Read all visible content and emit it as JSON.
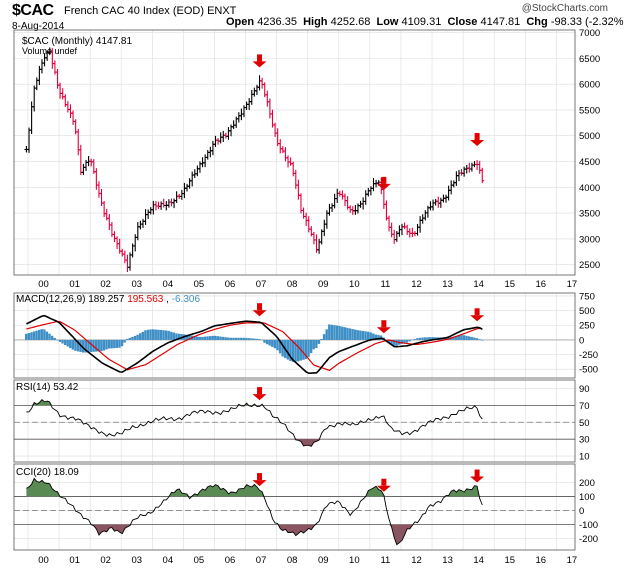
{
  "header": {
    "symbol": "$CAC",
    "name": "French CAC 40 Index (EOD)",
    "exchange": "ENXT",
    "date": "8-Aug-2014",
    "open_label": "Open",
    "open": "4236.35",
    "high_label": "High",
    "high": "4252.68",
    "low_label": "Low",
    "low": "4109.31",
    "close_label": "Close",
    "close": "4147.81",
    "chg_label": "Chg",
    "chg": "-98.33 (-2.32%)",
    "logo": "@StockCharts.com"
  },
  "chart_data": [
    {
      "type": "ohlc",
      "legend": "$CAC (Monthly) 4147.81",
      "legend2": "Volume undef",
      "x_tick_labels": [
        "00",
        "01",
        "02",
        "03",
        "04",
        "05",
        "06",
        "07",
        "08",
        "09",
        "10",
        "11",
        "12",
        "13",
        "14",
        "15",
        "16",
        "17"
      ],
      "y_ticks": [
        2500,
        3000,
        3500,
        4000,
        4500,
        5000,
        5500,
        6000,
        6500,
        7000
      ],
      "ylim": [
        2300,
        7050
      ],
      "pivots": [
        [
          1999.9,
          4500
        ],
        [
          2000.2,
          5900
        ],
        [
          2000.5,
          6500
        ],
        [
          2000.7,
          6650
        ],
        [
          2001.0,
          5900
        ],
        [
          2001.5,
          5200
        ],
        [
          2001.7,
          4300
        ],
        [
          2002.0,
          4600
        ],
        [
          2002.4,
          3600
        ],
        [
          2002.75,
          3000
        ],
        [
          2003.2,
          2500
        ],
        [
          2003.5,
          3200
        ],
        [
          2004.0,
          3600
        ],
        [
          2004.5,
          3700
        ],
        [
          2005.0,
          3900
        ],
        [
          2005.5,
          4400
        ],
        [
          2006.0,
          4900
        ],
        [
          2006.4,
          5000
        ],
        [
          2006.7,
          5300
        ],
        [
          2007.0,
          5600
        ],
        [
          2007.4,
          6000
        ],
        [
          2007.5,
          6050
        ],
        [
          2007.7,
          5600
        ],
        [
          2008.0,
          4900
        ],
        [
          2008.5,
          4400
        ],
        [
          2008.8,
          3500
        ],
        [
          2009.1,
          3100
        ],
        [
          2009.3,
          2800
        ],
        [
          2009.6,
          3500
        ],
        [
          2010.0,
          3900
        ],
        [
          2010.4,
          3500
        ],
        [
          2010.7,
          3700
        ],
        [
          2011.0,
          4000
        ],
        [
          2011.3,
          4100
        ],
        [
          2011.6,
          3200
        ],
        [
          2011.8,
          3000
        ],
        [
          2012.0,
          3300
        ],
        [
          2012.4,
          3050
        ],
        [
          2012.7,
          3400
        ],
        [
          2013.0,
          3700
        ],
        [
          2013.4,
          3800
        ],
        [
          2013.8,
          4200
        ],
        [
          2014.0,
          4300
        ],
        [
          2014.45,
          4500
        ],
        [
          2014.55,
          4300
        ],
        [
          2014.6,
          4150
        ]
      ],
      "arrows_x": [
        2007.45,
        2011.45,
        2014.45
      ]
    },
    {
      "type": "line",
      "legend": "MACD(12,26,9)",
      "macd": "189.257",
      "signal": "195.563",
      "hist": "-6.306",
      "y_ticks": [
        -500,
        -250,
        0,
        250,
        500,
        750
      ],
      "ylim": [
        -650,
        800
      ],
      "macd_pivots": [
        [
          1999.9,
          260
        ],
        [
          2000.5,
          420
        ],
        [
          2001.0,
          300
        ],
        [
          2001.8,
          -150
        ],
        [
          2002.4,
          -400
        ],
        [
          2003.0,
          -560
        ],
        [
          2003.5,
          -400
        ],
        [
          2004.0,
          -200
        ],
        [
          2004.5,
          -50
        ],
        [
          2005.0,
          50
        ],
        [
          2005.6,
          150
        ],
        [
          2006.0,
          240
        ],
        [
          2006.5,
          280
        ],
        [
          2007.0,
          320
        ],
        [
          2007.5,
          300
        ],
        [
          2008.0,
          60
        ],
        [
          2008.5,
          -330
        ],
        [
          2009.0,
          -570
        ],
        [
          2009.3,
          -560
        ],
        [
          2009.7,
          -300
        ],
        [
          2010.0,
          -200
        ],
        [
          2010.5,
          -100
        ],
        [
          2011.0,
          0
        ],
        [
          2011.4,
          30
        ],
        [
          2011.8,
          -120
        ],
        [
          2012.2,
          -100
        ],
        [
          2012.7,
          -30
        ],
        [
          2013.0,
          0
        ],
        [
          2013.5,
          40
        ],
        [
          2014.0,
          170
        ],
        [
          2014.5,
          220
        ],
        [
          2014.6,
          180
        ]
      ],
      "signal_pivots": [
        [
          1999.9,
          180
        ],
        [
          2000.5,
          260
        ],
        [
          2001.0,
          320
        ],
        [
          2001.5,
          170
        ],
        [
          2002.0,
          -60
        ],
        [
          2002.6,
          -330
        ],
        [
          2003.2,
          -510
        ],
        [
          2003.8,
          -420
        ],
        [
          2004.3,
          -250
        ],
        [
          2004.8,
          -80
        ],
        [
          2005.5,
          90
        ],
        [
          2006.0,
          180
        ],
        [
          2006.5,
          250
        ],
        [
          2007.0,
          290
        ],
        [
          2007.6,
          290
        ],
        [
          2008.2,
          140
        ],
        [
          2008.7,
          -120
        ],
        [
          2009.2,
          -430
        ],
        [
          2009.7,
          -520
        ],
        [
          2010.0,
          -400
        ],
        [
          2010.6,
          -220
        ],
        [
          2011.2,
          -60
        ],
        [
          2011.6,
          0
        ],
        [
          2012.0,
          -50
        ],
        [
          2012.5,
          -80
        ],
        [
          2013.0,
          -40
        ],
        [
          2013.5,
          10
        ],
        [
          2014.0,
          100
        ],
        [
          2014.5,
          200
        ],
        [
          2014.6,
          190
        ]
      ],
      "arrows_x": [
        2007.45,
        2011.45,
        2014.45
      ]
    },
    {
      "type": "line",
      "legend": "RSI(14)",
      "value": "53.42",
      "y_ticks": [
        10,
        30,
        50,
        70,
        90
      ],
      "ylim": [
        3,
        100
      ],
      "overbought": 70,
      "oversold": 30,
      "mid": 50,
      "pivots": [
        [
          1999.9,
          60
        ],
        [
          2000.2,
          72
        ],
        [
          2000.6,
          74
        ],
        [
          2001.0,
          60
        ],
        [
          2001.5,
          55
        ],
        [
          2001.9,
          45
        ],
        [
          2002.3,
          40
        ],
        [
          2002.7,
          35
        ],
        [
          2003.0,
          35
        ],
        [
          2003.4,
          45
        ],
        [
          2003.8,
          50
        ],
        [
          2004.2,
          52
        ],
        [
          2004.8,
          55
        ],
        [
          2005.2,
          60
        ],
        [
          2005.8,
          62
        ],
        [
          2006.2,
          63
        ],
        [
          2006.6,
          65
        ],
        [
          2007.0,
          70
        ],
        [
          2007.4,
          72
        ],
        [
          2007.6,
          70
        ],
        [
          2007.9,
          55
        ],
        [
          2008.3,
          45
        ],
        [
          2008.7,
          30
        ],
        [
          2009.0,
          20
        ],
        [
          2009.3,
          25
        ],
        [
          2009.6,
          45
        ],
        [
          2010.0,
          50
        ],
        [
          2010.5,
          45
        ],
        [
          2011.0,
          55
        ],
        [
          2011.4,
          58
        ],
        [
          2011.7,
          40
        ],
        [
          2012.0,
          37
        ],
        [
          2012.4,
          40
        ],
        [
          2012.9,
          48
        ],
        [
          2013.3,
          55
        ],
        [
          2013.8,
          62
        ],
        [
          2014.2,
          65
        ],
        [
          2014.45,
          67
        ],
        [
          2014.6,
          53
        ]
      ],
      "arrows_x": [
        2007.45
      ]
    },
    {
      "type": "line",
      "legend": "CCI(20)",
      "value": "18.09",
      "y_ticks": [
        -200,
        -100,
        0,
        100,
        200
      ],
      "ylim": [
        -280,
        330
      ],
      "upper": 100,
      "lower": -100,
      "pivots": [
        [
          1999.9,
          120
        ],
        [
          2000.2,
          220
        ],
        [
          2000.6,
          210
        ],
        [
          2001.0,
          100
        ],
        [
          2001.5,
          20
        ],
        [
          2002.0,
          -80
        ],
        [
          2002.3,
          -180
        ],
        [
          2002.7,
          -120
        ],
        [
          2003.0,
          -150
        ],
        [
          2003.5,
          -60
        ],
        [
          2003.9,
          -20
        ],
        [
          2004.3,
          60
        ],
        [
          2004.8,
          140
        ],
        [
          2005.2,
          100
        ],
        [
          2005.6,
          150
        ],
        [
          2006.0,
          170
        ],
        [
          2006.5,
          130
        ],
        [
          2007.0,
          170
        ],
        [
          2007.4,
          160
        ],
        [
          2007.6,
          100
        ],
        [
          2007.9,
          -60
        ],
        [
          2008.2,
          -140
        ],
        [
          2008.6,
          -180
        ],
        [
          2009.0,
          -130
        ],
        [
          2009.3,
          -90
        ],
        [
          2009.6,
          30
        ],
        [
          2010.0,
          60
        ],
        [
          2010.4,
          -20
        ],
        [
          2010.8,
          80
        ],
        [
          2011.1,
          160
        ],
        [
          2011.4,
          150
        ],
        [
          2011.7,
          -120
        ],
        [
          2011.9,
          -260
        ],
        [
          2012.2,
          -150
        ],
        [
          2012.6,
          -60
        ],
        [
          2012.9,
          40
        ],
        [
          2013.3,
          60
        ],
        [
          2013.7,
          140
        ],
        [
          2014.0,
          150
        ],
        [
          2014.45,
          170
        ],
        [
          2014.6,
          18
        ]
      ],
      "arrows_x": [
        2007.45,
        2011.45,
        2014.45
      ]
    }
  ],
  "colors": {
    "bar_up": "#000000",
    "bar_down": "#e0003c",
    "signal_line": "#e00000",
    "hist": "#3f8fc7",
    "rsi_fill": "#5a8a54",
    "rsi_low_fill": "#8a5560",
    "arrow": "#e00000",
    "grid": "#dddddd"
  }
}
